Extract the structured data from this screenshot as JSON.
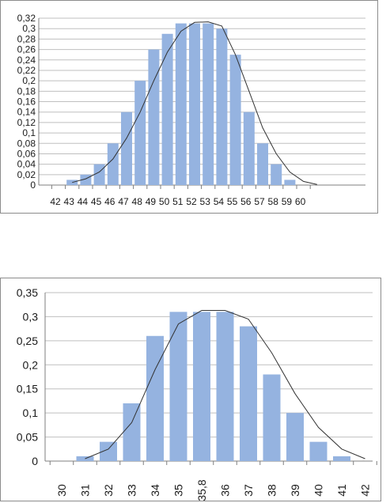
{
  "chart_data": [
    {
      "type": "bar",
      "categories": [
        "42",
        "43",
        "44",
        "45",
        "46",
        "47",
        "48",
        "49",
        "50",
        "51",
        "52",
        "53",
        "54",
        "55",
        "56",
        "57",
        "58",
        "59",
        "60"
      ],
      "series": [
        {
          "values": [
            0,
            0.01,
            0.02,
            0.04,
            0.08,
            0.14,
            0.2,
            0.26,
            0.29,
            0.31,
            0.31,
            0.31,
            0.3,
            0.25,
            0.14,
            0.08,
            0.04,
            0.01,
            0
          ]
        }
      ],
      "curve": {
        "x": [
          43,
          44,
          45,
          46,
          47,
          48,
          49,
          50,
          51,
          52,
          53,
          54,
          55,
          56,
          57,
          58,
          59,
          60,
          61
        ],
        "y": [
          0.005,
          0.012,
          0.025,
          0.05,
          0.09,
          0.14,
          0.2,
          0.255,
          0.295,
          0.312,
          0.313,
          0.305,
          0.25,
          0.18,
          0.11,
          0.06,
          0.025,
          0.007,
          0.001
        ]
      },
      "yticks": [
        "0",
        "0,02",
        "0,04",
        "0,06",
        "0,08",
        "0,1",
        "0,12",
        "0,14",
        "0,16",
        "0,18",
        "0,2",
        "0,22",
        "0,24",
        "0,26",
        "0,28",
        "0,3",
        "0,32"
      ],
      "ylim": [
        0,
        0.32
      ],
      "grid": true,
      "legend": "none",
      "colors": {
        "bar": "#95b3e0",
        "curve": "#333333",
        "grid": "#bfbfbf",
        "axis": "#7f7f7f"
      }
    },
    {
      "type": "bar",
      "categories": [
        "30",
        "31",
        "32",
        "33",
        "34",
        "35",
        "35,8",
        "36",
        "37",
        "38",
        "39",
        "40",
        "41",
        "42"
      ],
      "series": [
        {
          "values": [
            0,
            0.01,
            0.04,
            0.12,
            0.26,
            0.31,
            0.31,
            0.31,
            0.28,
            0.18,
            0.1,
            0.04,
            0.01,
            0
          ]
        }
      ],
      "curve": {
        "x": [
          "31",
          "32",
          "33",
          "34",
          "35",
          "35,8",
          "36",
          "37",
          "38",
          "39",
          "40",
          "41",
          "42"
        ],
        "y": [
          0.005,
          0.025,
          0.08,
          0.19,
          0.285,
          0.313,
          0.313,
          0.295,
          0.225,
          0.14,
          0.07,
          0.025,
          0.005
        ]
      },
      "yticks": [
        "0",
        "0,05",
        "0,1",
        "0,15",
        "0,2",
        "0,25",
        "0,3",
        "0,35"
      ],
      "ylim": [
        0,
        0.35
      ],
      "grid": true,
      "legend": "none",
      "colors": {
        "bar": "#95b3e0",
        "curve": "#333333",
        "grid": "#bfbfbf",
        "axis": "#7f7f7f"
      }
    }
  ]
}
